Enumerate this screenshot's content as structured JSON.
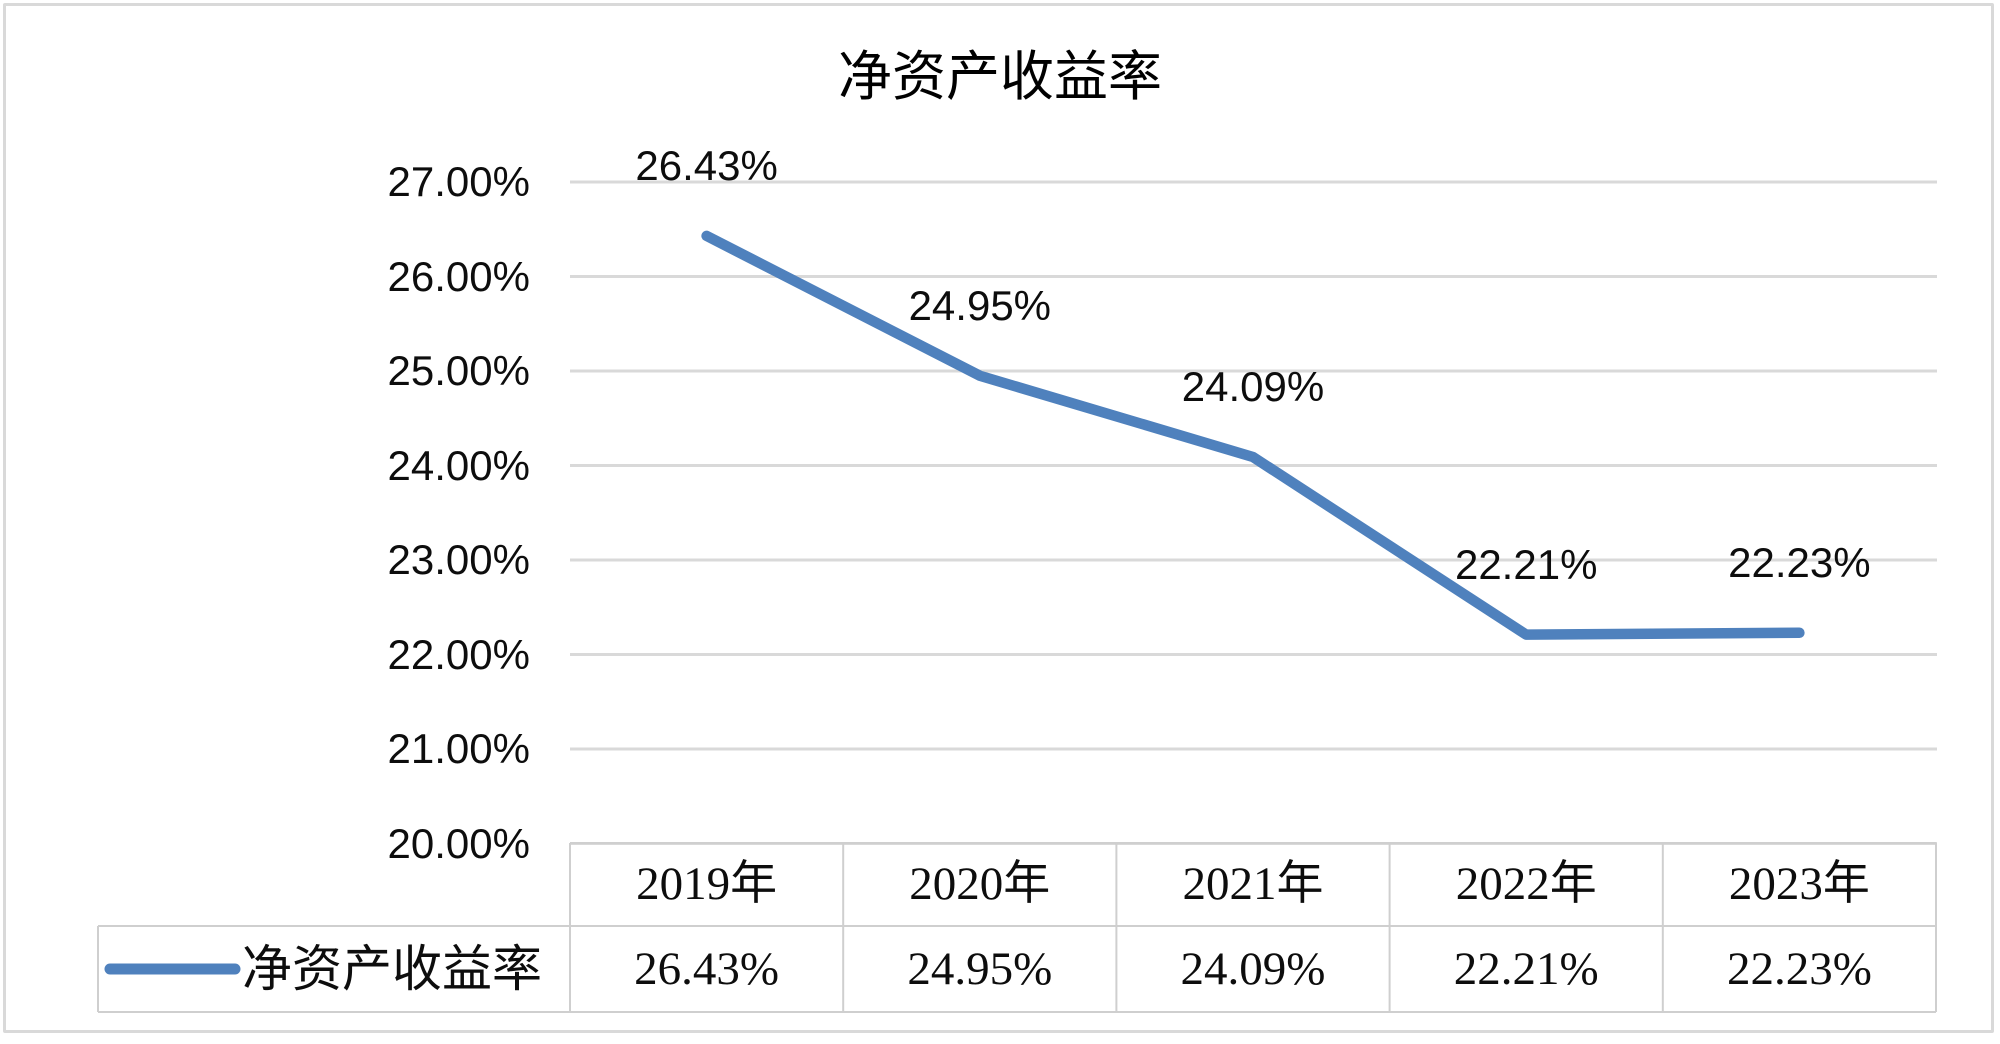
{
  "title": "净资产收益率",
  "colors": {
    "series_line": "#4F81BD",
    "gridline": "#d9d9d9",
    "table_border": "#cfcfcf",
    "frame_border": "#d9d9d9",
    "text": "#0d0d0d",
    "background": "#ffffff"
  },
  "chart_data": {
    "type": "line",
    "title": "净资产收益率",
    "categories": [
      "2019年",
      "2020年",
      "2021年",
      "2022年",
      "2023年"
    ],
    "series": [
      {
        "name": "净资产收益率",
        "values": [
          26.43,
          24.95,
          24.09,
          22.21,
          22.23
        ]
      }
    ],
    "data_labels": [
      "26.43%",
      "24.95%",
      "24.09%",
      "22.21%",
      "22.23%"
    ],
    "xlabel": "",
    "ylabel": "",
    "ylim": [
      20,
      27
    ],
    "y_tick_step": 1,
    "y_ticks": [
      "27.00%",
      "26.00%",
      "25.00%",
      "24.00%",
      "23.00%",
      "22.00%",
      "21.00%",
      "20.00%"
    ],
    "grid": true,
    "markers": false,
    "legend_position": "data-table-left"
  },
  "data_table": {
    "legend_label": "净资产收益率",
    "columns": [
      "2019年",
      "2020年",
      "2021年",
      "2022年",
      "2023年"
    ],
    "rows": [
      {
        "label": "净资产收益率",
        "values": [
          "26.43%",
          "24.95%",
          "24.09%",
          "22.21%",
          "22.23%"
        ]
      }
    ]
  }
}
